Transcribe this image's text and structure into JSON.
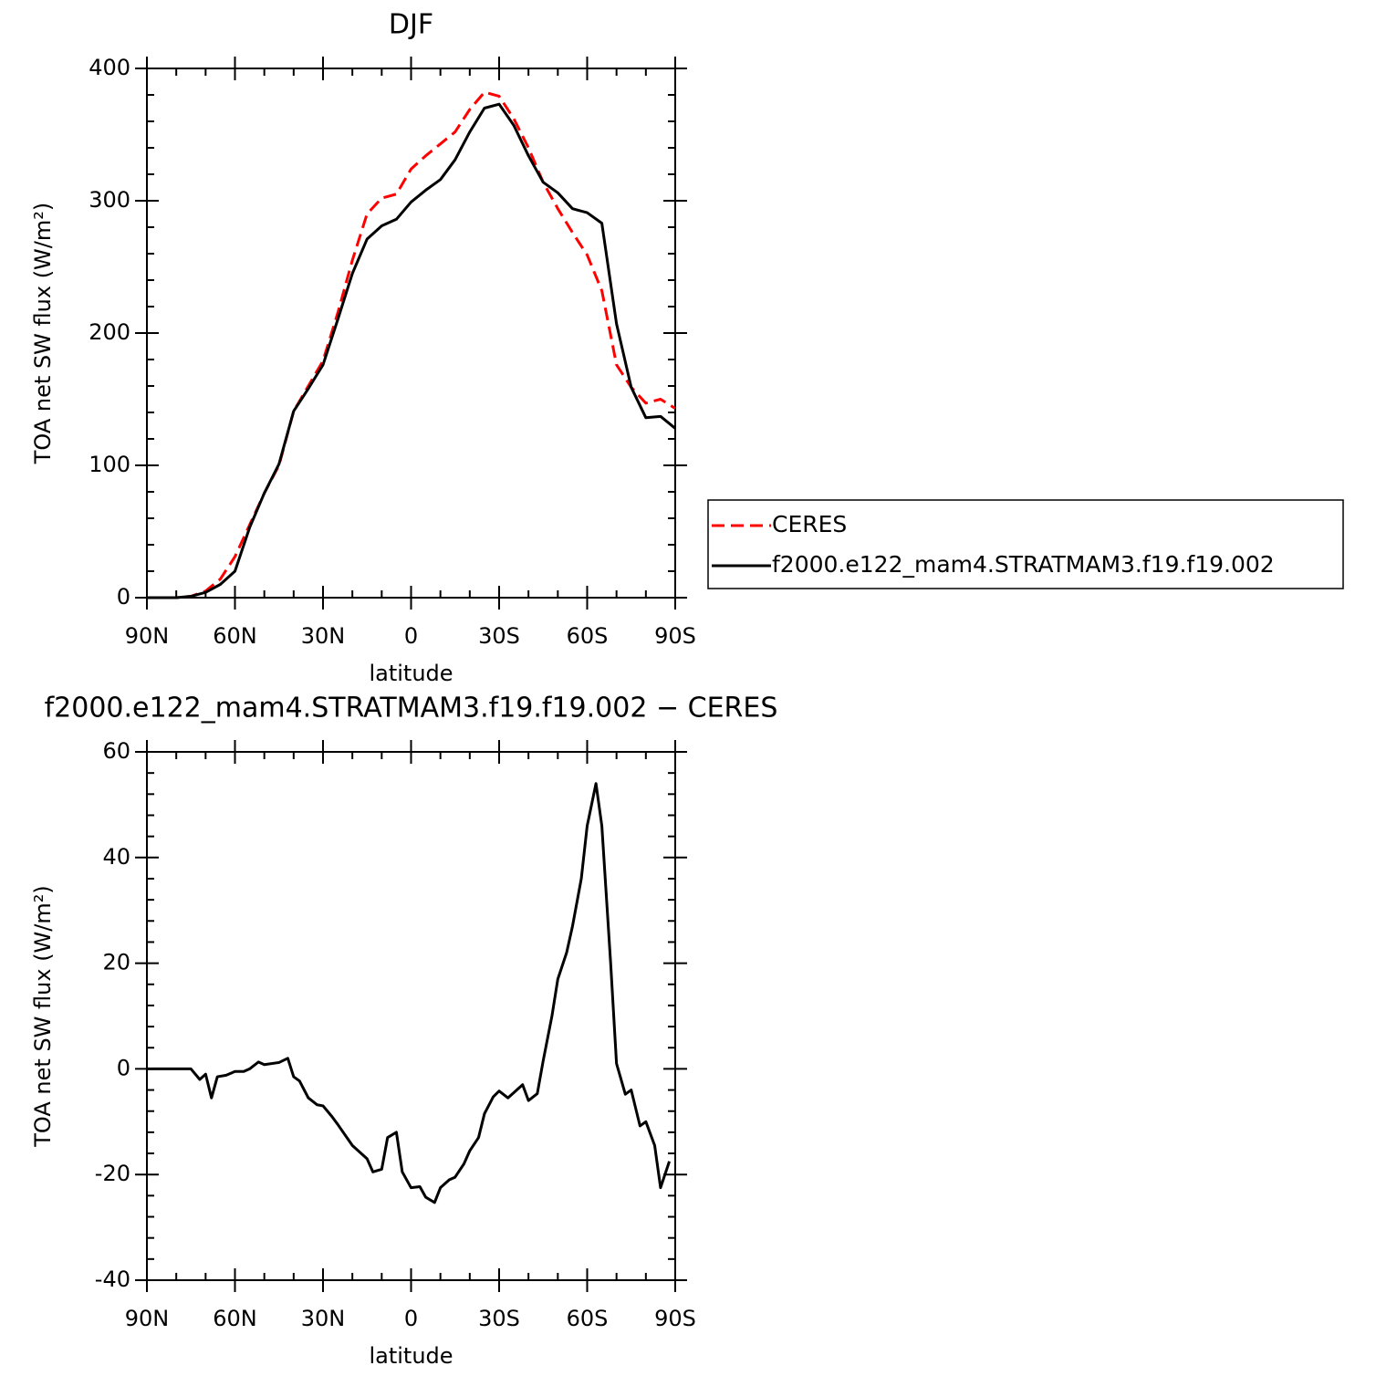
{
  "chart_data": [
    {
      "type": "line",
      "title": "DJF",
      "x_label": "latitude",
      "y_label": "TOA net SW flux (W/m²)",
      "xlim": [
        90,
        -90
      ],
      "ylim": [
        0,
        400
      ],
      "xticks": [
        {
          "value": 90,
          "label": "90N"
        },
        {
          "value": 60,
          "label": "60N"
        },
        {
          "value": 30,
          "label": "30N"
        },
        0,
        {
          "value": -30,
          "label": "30S"
        },
        {
          "value": -60,
          "label": "60S"
        },
        {
          "value": -90,
          "label": "90S"
        }
      ],
      "yticks": [
        0,
        100,
        200,
        300,
        400
      ],
      "legend": "right",
      "x": [
        90,
        85,
        80,
        75,
        70,
        65,
        60,
        55,
        50,
        45,
        40,
        35,
        30,
        25,
        20,
        15,
        10,
        5,
        0,
        -5,
        -10,
        -15,
        -20,
        -25,
        -30,
        -35,
        -40,
        -45,
        -50,
        -55,
        -60,
        -65,
        -70,
        -75,
        -80,
        -85,
        -90
      ],
      "series": [
        {
          "name": "CERES",
          "color": "#ff0000",
          "line_style": "dashed",
          "values": [
            0,
            0,
            0,
            1,
            5,
            14,
            31,
            55,
            79,
            100,
            141,
            160,
            179,
            215,
            255,
            290,
            302,
            305,
            324,
            334,
            343,
            352,
            369,
            382,
            379,
            362,
            340,
            314,
            294,
            276,
            259,
            232,
            176,
            159,
            147,
            150,
            143
          ]
        },
        {
          "name": "f2000.e122_mam4.STRATMAM3.f19.f19.002",
          "color": "#000000",
          "line_style": "solid",
          "values": [
            0,
            0,
            0,
            1,
            4,
            10,
            20,
            53,
            79,
            101,
            141,
            158,
            176,
            210,
            245,
            271,
            281,
            286,
            299,
            308,
            316,
            331,
            352,
            370,
            373,
            357,
            334,
            314,
            306,
            294,
            291,
            283,
            207,
            159,
            136,
            137,
            128
          ]
        }
      ]
    },
    {
      "type": "line",
      "title": "f2000.e122_mam4.STRATMAM3.f19.f19.002 − CERES",
      "x_label": "latitude",
      "y_label": "TOA net SW flux (W/m²)",
      "xlim": [
        90,
        -90
      ],
      "ylim": [
        -40,
        60
      ],
      "xticks": [
        {
          "value": 90,
          "label": "90N"
        },
        {
          "value": 60,
          "label": "60N"
        },
        {
          "value": 30,
          "label": "30N"
        },
        0,
        {
          "value": -30,
          "label": "30S"
        },
        {
          "value": -60,
          "label": "60S"
        },
        {
          "value": -90,
          "label": "90S"
        }
      ],
      "yticks": [
        -40,
        -20,
        0,
        20,
        40,
        60
      ],
      "x": [
        90,
        85,
        80,
        77,
        75,
        72,
        70,
        68,
        66,
        63,
        60,
        57,
        55,
        52,
        50,
        45,
        42,
        40,
        38,
        35,
        32,
        30,
        27,
        25,
        20,
        15,
        13,
        10,
        8,
        5,
        3,
        0,
        -3,
        -5,
        -8,
        -10,
        -13,
        -15,
        -18,
        -20,
        -23,
        -25,
        -28,
        -30,
        -33,
        -35,
        -38,
        -40,
        -43,
        -45,
        -48,
        -50,
        -53,
        -55,
        -58,
        -60,
        -63,
        -65,
        -68,
        -70,
        -73,
        -75,
        -78,
        -80,
        -83,
        -85,
        -88
      ],
      "color": "#000000",
      "values": [
        0,
        0,
        0,
        0,
        0,
        -2,
        -1,
        -5.5,
        -1.5,
        -1.2,
        -0.5,
        -0.5,
        0,
        1.3,
        0.8,
        1.2,
        2,
        -1.5,
        -2.3,
        -5.5,
        -6.8,
        -7,
        -9,
        -10.5,
        -14.5,
        -17,
        -19.5,
        -19,
        -13,
        -12,
        -19.5,
        -22.5,
        -22.3,
        -24.3,
        -25.3,
        -22.5,
        -21,
        -20.5,
        -18,
        -15.5,
        -13,
        -8.5,
        -5.3,
        -4.2,
        -5.5,
        -4.5,
        -3,
        -6,
        -4.7,
        1.5,
        10,
        17,
        22,
        27,
        36,
        46,
        54,
        46,
        20,
        1,
        -4.8,
        -4,
        -10.8,
        -10,
        -14.5,
        -22.5,
        -17.5
      ]
    }
  ]
}
